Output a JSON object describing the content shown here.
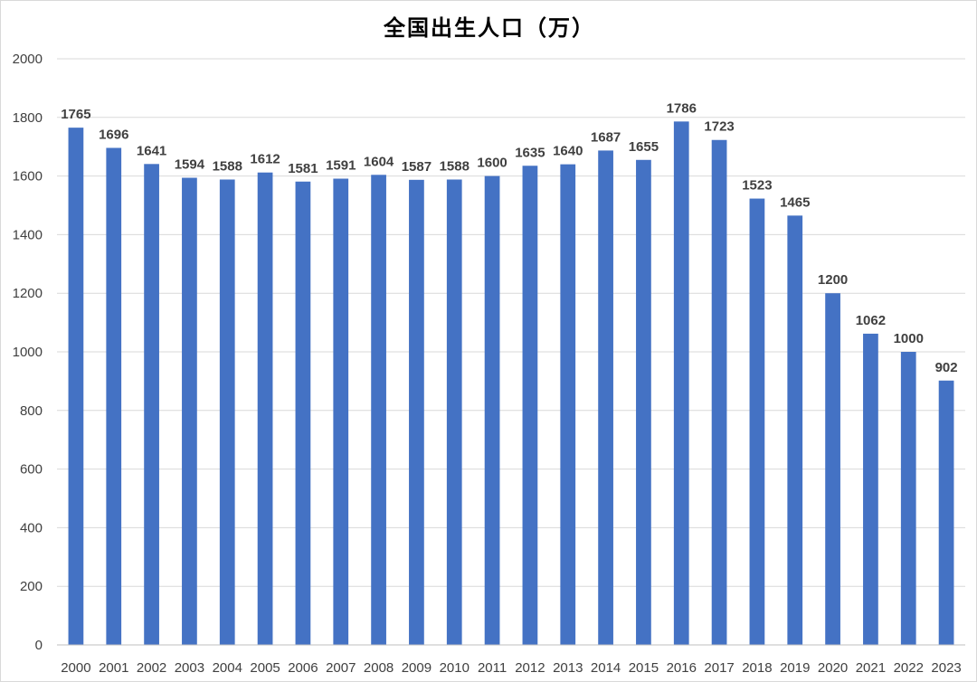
{
  "chart_data": {
    "type": "bar",
    "title": "全国出生人口（万）",
    "xlabel": "",
    "ylabel": "",
    "categories": [
      "2000",
      "2001",
      "2002",
      "2003",
      "2004",
      "2005",
      "2006",
      "2007",
      "2008",
      "2009",
      "2010",
      "2011",
      "2012",
      "2013",
      "2014",
      "2015",
      "2016",
      "2017",
      "2018",
      "2019",
      "2020",
      "2021",
      "2022",
      "2023"
    ],
    "values": [
      1765,
      1696,
      1641,
      1594,
      1588,
      1612,
      1581,
      1591,
      1604,
      1587,
      1588,
      1600,
      1635,
      1640,
      1687,
      1655,
      1786,
      1723,
      1523,
      1465,
      1200,
      1062,
      1000,
      902
    ],
    "ylim": [
      0,
      2000
    ],
    "yticks": [
      0,
      200,
      400,
      600,
      800,
      1000,
      1200,
      1400,
      1600,
      1800,
      2000
    ],
    "grid": true,
    "legend": "none",
    "bar_color": "#4472C4",
    "grid_color": "#d9d9d9"
  }
}
